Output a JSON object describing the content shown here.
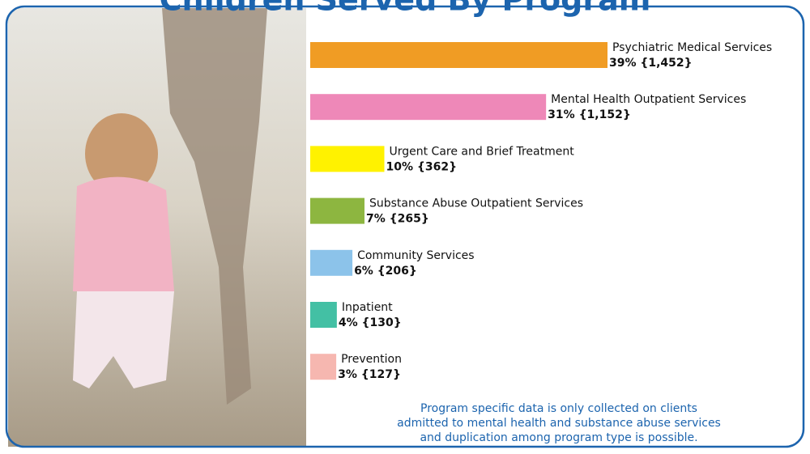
{
  "chart_data": {
    "type": "bar",
    "orientation": "horizontal",
    "title": "Children Served By Program",
    "categories": [
      "Psychiatric Medical Services",
      "Mental Health Outpatient Services",
      "Urgent Care and Brief Treatment",
      "Substance Abuse Outpatient Services",
      "Community Services",
      "Inpatient",
      "Prevention"
    ],
    "values": [
      1452,
      1152,
      362,
      265,
      206,
      130,
      127
    ],
    "value_labels": [
      "{1,452}",
      "{1,152}",
      "{362}",
      "{265}",
      "{206}",
      "{130}",
      "{127}"
    ],
    "percent_labels": [
      "39%",
      "31%",
      "10%",
      "7%",
      "6%",
      "4%",
      "3%"
    ],
    "colors": [
      "#f09c24",
      "#ee88b8",
      "#fff200",
      "#8db640",
      "#8cc3ea",
      "#43c0a4",
      "#f6b7b0"
    ],
    "note": [
      "Program specific data is only collected on clients",
      "admitted to mental health and substance abuse services",
      "and duplication among program type is possible."
    ]
  }
}
